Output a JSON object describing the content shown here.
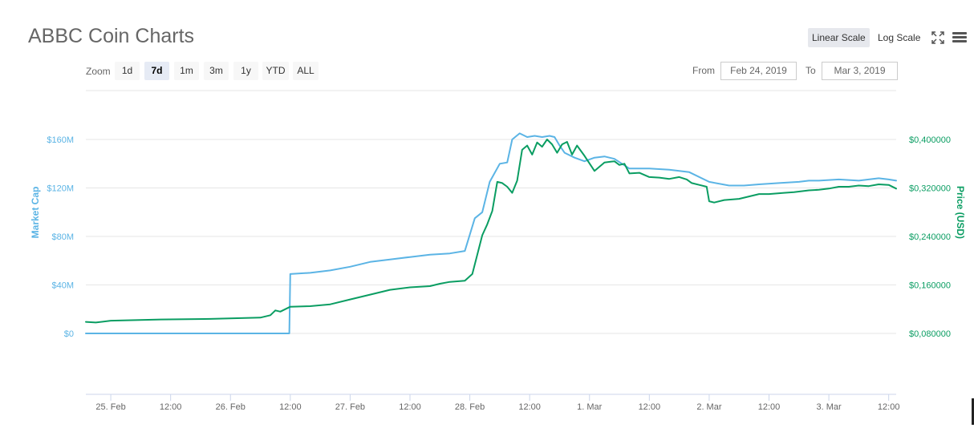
{
  "title": "ABBC Coin Charts",
  "toolbar": {
    "linear_label": "Linear Scale",
    "log_label": "Log Scale",
    "active_scale": "Linear Scale",
    "zoom_label": "Zoom",
    "zoom_options": [
      "1d",
      "7d",
      "1m",
      "3m",
      "1y",
      "YTD",
      "ALL"
    ],
    "zoom_active": "7d",
    "from_label": "From",
    "from_value": "Feb 24, 2019",
    "to_label": "To",
    "to_value": "Mar 3, 2019"
  },
  "colors": {
    "market_cap": "#5bb4e5",
    "price": "#0a9d62",
    "grid": "#e6e6e6",
    "axis_label": "#666666"
  },
  "chart_data": {
    "type": "line",
    "x_tick_labels": [
      "25. Feb",
      "12:00",
      "26. Feb",
      "12:00",
      "27. Feb",
      "12:00",
      "28. Feb",
      "12:00",
      "1. Mar",
      "12:00",
      "2. Mar",
      "12:00",
      "3. Mar",
      "12:00"
    ],
    "x_range_hours": [
      -5,
      157.5
    ],
    "y_left": {
      "label": "Market Cap",
      "ticks": [
        "$0",
        "$40M",
        "$80M",
        "$120M",
        "$160M"
      ],
      "range": [
        0,
        160000000
      ]
    },
    "y_right": {
      "label": "Price (USD)",
      "ticks": [
        "$0,080000",
        "$0,160000",
        "$0,240000",
        "$0,320000",
        "$0,400000"
      ],
      "range": [
        0.08,
        0.4
      ]
    },
    "grid": true,
    "legend": "none",
    "series": [
      {
        "name": "Market Cap",
        "axis": "left",
        "color": "#5bb4e5",
        "x_hours": [
          -5,
          10,
          20,
          30,
          35.8,
          36.0,
          40,
          44,
          48,
          52,
          56,
          60,
          64,
          68,
          71,
          73,
          74.5,
          76,
          78,
          79.5,
          80.5,
          82,
          83.5,
          85,
          86.5,
          88,
          89,
          90,
          91,
          93,
          95,
          97,
          99,
          101,
          104,
          108,
          112,
          116,
          120,
          124,
          127,
          130,
          134,
          138,
          140,
          142,
          146,
          150,
          154,
          156,
          157.5
        ],
        "y": [
          0,
          0,
          0,
          0,
          0,
          49000000,
          50000000,
          52000000,
          55000000,
          59000000,
          61000000,
          63000000,
          65000000,
          66000000,
          68000000,
          95000000,
          100000000,
          125000000,
          140000000,
          141000000,
          160000000,
          165000000,
          162000000,
          163000000,
          162000000,
          163000000,
          162000000,
          155000000,
          149000000,
          145000000,
          142000000,
          145000000,
          146000000,
          144000000,
          136000000,
          136000000,
          135000000,
          133000000,
          125000000,
          122000000,
          122000000,
          123000000,
          124000000,
          125000000,
          126000000,
          126000000,
          127000000,
          126000000,
          128000000,
          127000000,
          126000000
        ]
      },
      {
        "name": "Price (USD)",
        "axis": "right",
        "color": "#0a9d62",
        "x_hours": [
          -5,
          -3,
          0,
          5,
          10,
          20,
          30,
          32,
          33,
          34,
          36,
          40,
          44,
          48,
          52,
          56,
          60,
          64,
          66,
          68,
          71,
          72.5,
          73.5,
          74.5,
          75.5,
          76.5,
          77.5,
          78.5,
          79.5,
          80.5,
          81.5,
          82.5,
          83.5,
          84.5,
          85.5,
          86.5,
          87.5,
          88.5,
          89.5,
          90.5,
          91.5,
          92.5,
          93.5,
          95,
          97,
          99,
          101,
          102,
          103,
          104,
          106,
          108,
          110,
          112,
          114,
          115.5,
          116.5,
          118,
          119.5,
          120,
          121,
          123,
          126,
          130,
          132,
          135,
          137,
          140,
          142,
          144,
          146,
          148,
          150,
          152,
          154,
          156,
          157.5
        ],
        "y": [
          0.099,
          0.098,
          0.101,
          0.102,
          0.103,
          0.104,
          0.106,
          0.11,
          0.118,
          0.116,
          0.124,
          0.125,
          0.128,
          0.136,
          0.144,
          0.152,
          0.156,
          0.158,
          0.162,
          0.165,
          0.167,
          0.178,
          0.21,
          0.242,
          0.26,
          0.282,
          0.33,
          0.328,
          0.322,
          0.312,
          0.332,
          0.383,
          0.39,
          0.375,
          0.395,
          0.388,
          0.4,
          0.392,
          0.378,
          0.392,
          0.396,
          0.375,
          0.39,
          0.373,
          0.348,
          0.362,
          0.364,
          0.358,
          0.36,
          0.344,
          0.345,
          0.338,
          0.337,
          0.335,
          0.338,
          0.334,
          0.328,
          0.325,
          0.322,
          0.298,
          0.296,
          0.3,
          0.302,
          0.31,
          0.31,
          0.312,
          0.313,
          0.316,
          0.317,
          0.319,
          0.322,
          0.322,
          0.324,
          0.323,
          0.326,
          0.325,
          0.319
        ]
      }
    ]
  }
}
